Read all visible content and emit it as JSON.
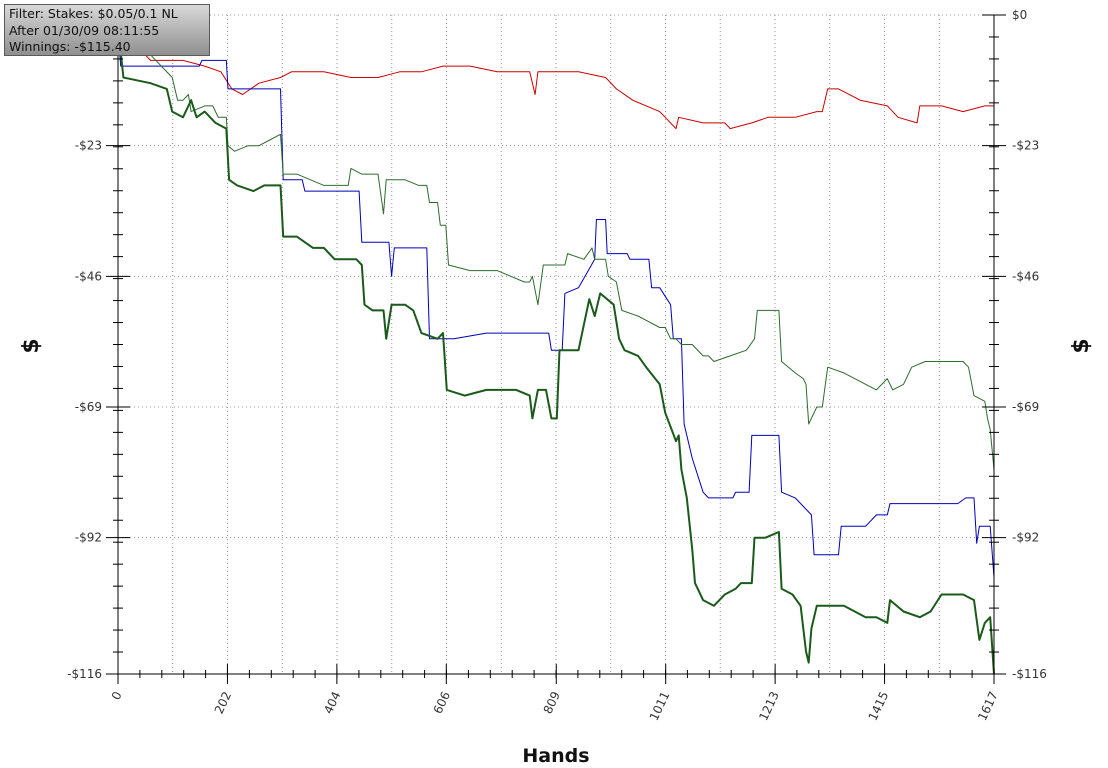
{
  "filter": {
    "line1": "Filter: Stakes: $0.05/0.1 NL",
    "line2": "After 01/30/09 08:11:55",
    "line3": "Winnings: -$115.40"
  },
  "chart_data": {
    "type": "line",
    "xlabel": "Hands",
    "ylabel": "$",
    "xlim": [
      0,
      1617
    ],
    "ylim": [
      -116,
      0
    ],
    "x_ticks": [
      "0",
      "202",
      "404",
      "606",
      "809",
      "1011",
      "1213",
      "1415",
      "1617"
    ],
    "x_tick_values": [
      0,
      202,
      404,
      606,
      809,
      1011,
      1213,
      1415,
      1617
    ],
    "y_ticks": [
      "$0",
      "-$23",
      "-$46",
      "-$69",
      "-$92",
      "-$116"
    ],
    "y_tick_values": [
      0,
      -23,
      -46,
      -69,
      -92,
      -116
    ],
    "grid": true,
    "series": [
      {
        "color": "#cc0000",
        "width": 1,
        "points": [
          [
            0,
            -2
          ],
          [
            60,
            -8
          ],
          [
            120,
            -8
          ],
          [
            160,
            -9
          ],
          [
            190,
            -10
          ],
          [
            210,
            -13
          ],
          [
            230,
            -14
          ],
          [
            260,
            -12
          ],
          [
            300,
            -11
          ],
          [
            320,
            -10
          ],
          [
            380,
            -10
          ],
          [
            430,
            -11
          ],
          [
            480,
            -11
          ],
          [
            520,
            -10
          ],
          [
            560,
            -10
          ],
          [
            600,
            -9
          ],
          [
            650,
            -9
          ],
          [
            700,
            -10
          ],
          [
            760,
            -10
          ],
          [
            770,
            -14
          ],
          [
            775,
            -10
          ],
          [
            800,
            -10
          ],
          [
            850,
            -10
          ],
          [
            900,
            -11
          ],
          [
            920,
            -13
          ],
          [
            950,
            -15
          ],
          [
            1000,
            -17
          ],
          [
            1010,
            -18
          ],
          [
            1030,
            -20
          ],
          [
            1035,
            -18
          ],
          [
            1080,
            -19
          ],
          [
            1120,
            -19
          ],
          [
            1130,
            -20
          ],
          [
            1170,
            -19
          ],
          [
            1200,
            -18
          ],
          [
            1250,
            -18
          ],
          [
            1290,
            -17
          ],
          [
            1300,
            -17
          ],
          [
            1310,
            -13
          ],
          [
            1330,
            -13
          ],
          [
            1370,
            -15
          ],
          [
            1420,
            -16
          ],
          [
            1440,
            -18
          ],
          [
            1475,
            -19
          ],
          [
            1480,
            -16
          ],
          [
            1520,
            -16
          ],
          [
            1560,
            -17
          ],
          [
            1600,
            -16
          ],
          [
            1617,
            -16
          ]
        ]
      },
      {
        "color": "#0000bb",
        "width": 1,
        "points": [
          [
            0,
            -3
          ],
          [
            5,
            -9
          ],
          [
            100,
            -9
          ],
          [
            150,
            -9
          ],
          [
            155,
            -8
          ],
          [
            200,
            -8
          ],
          [
            203,
            -13
          ],
          [
            300,
            -13
          ],
          [
            305,
            -29
          ],
          [
            340,
            -29
          ],
          [
            345,
            -31
          ],
          [
            400,
            -31
          ],
          [
            445,
            -31
          ],
          [
            450,
            -40
          ],
          [
            500,
            -40
          ],
          [
            505,
            -46
          ],
          [
            510,
            -41
          ],
          [
            570,
            -41
          ],
          [
            575,
            -57
          ],
          [
            620,
            -57
          ],
          [
            680,
            -56
          ],
          [
            795,
            -56
          ],
          [
            800,
            -59
          ],
          [
            820,
            -59
          ],
          [
            825,
            -49
          ],
          [
            850,
            -48
          ],
          [
            880,
            -43
          ],
          [
            883,
            -36
          ],
          [
            900,
            -36
          ],
          [
            903,
            -42
          ],
          [
            940,
            -42
          ],
          [
            945,
            -43
          ],
          [
            980,
            -43
          ],
          [
            985,
            -48
          ],
          [
            1000,
            -48
          ],
          [
            1020,
            -51
          ],
          [
            1025,
            -57
          ],
          [
            1040,
            -57
          ],
          [
            1045,
            -72
          ],
          [
            1060,
            -78
          ],
          [
            1080,
            -84
          ],
          [
            1090,
            -85
          ],
          [
            1135,
            -85
          ],
          [
            1140,
            -84
          ],
          [
            1165,
            -84
          ],
          [
            1170,
            -74
          ],
          [
            1220,
            -74
          ],
          [
            1225,
            -84
          ],
          [
            1250,
            -85
          ],
          [
            1280,
            -88
          ],
          [
            1285,
            -95
          ],
          [
            1330,
            -95
          ],
          [
            1335,
            -90
          ],
          [
            1380,
            -90
          ],
          [
            1400,
            -88
          ],
          [
            1420,
            -88
          ],
          [
            1425,
            -86
          ],
          [
            1480,
            -86
          ],
          [
            1550,
            -86
          ],
          [
            1565,
            -85
          ],
          [
            1580,
            -85
          ],
          [
            1585,
            -93
          ],
          [
            1590,
            -90
          ],
          [
            1610,
            -90
          ],
          [
            1617,
            -99
          ]
        ]
      },
      {
        "color": "#2e6b2e",
        "width": 1,
        "points": [
          [
            0,
            -2
          ],
          [
            12,
            -7
          ],
          [
            60,
            -7
          ],
          [
            100,
            -11
          ],
          [
            110,
            -15
          ],
          [
            120,
            -15
          ],
          [
            130,
            -14
          ],
          [
            135,
            -17
          ],
          [
            160,
            -16
          ],
          [
            175,
            -16
          ],
          [
            185,
            -18
          ],
          [
            200,
            -18
          ],
          [
            203,
            -23
          ],
          [
            215,
            -24
          ],
          [
            240,
            -23
          ],
          [
            260,
            -23
          ],
          [
            280,
            -22
          ],
          [
            300,
            -21
          ],
          [
            305,
            -28
          ],
          [
            330,
            -28
          ],
          [
            380,
            -30
          ],
          [
            425,
            -30
          ],
          [
            430,
            -27
          ],
          [
            450,
            -28
          ],
          [
            470,
            -28
          ],
          [
            480,
            -28
          ],
          [
            490,
            -35
          ],
          [
            495,
            -29
          ],
          [
            530,
            -29
          ],
          [
            555,
            -30
          ],
          [
            570,
            -30
          ],
          [
            575,
            -33
          ],
          [
            590,
            -33
          ],
          [
            595,
            -37
          ],
          [
            605,
            -37
          ],
          [
            610,
            -44
          ],
          [
            650,
            -45
          ],
          [
            700,
            -45
          ],
          [
            750,
            -47
          ],
          [
            760,
            -47
          ],
          [
            765,
            -46
          ],
          [
            775,
            -51
          ],
          [
            785,
            -44
          ],
          [
            810,
            -44
          ],
          [
            825,
            -44
          ],
          [
            830,
            -42
          ],
          [
            860,
            -43
          ],
          [
            875,
            -41
          ],
          [
            880,
            -43
          ],
          [
            900,
            -43
          ],
          [
            905,
            -46
          ],
          [
            920,
            -47
          ],
          [
            930,
            -52
          ],
          [
            960,
            -53
          ],
          [
            1000,
            -55
          ],
          [
            1010,
            -55
          ],
          [
            1020,
            -57
          ],
          [
            1030,
            -57
          ],
          [
            1040,
            -58
          ],
          [
            1060,
            -58
          ],
          [
            1080,
            -60
          ],
          [
            1090,
            -60
          ],
          [
            1100,
            -61
          ],
          [
            1130,
            -60
          ],
          [
            1160,
            -59
          ],
          [
            1175,
            -57
          ],
          [
            1180,
            -52
          ],
          [
            1200,
            -52
          ],
          [
            1220,
            -52
          ],
          [
            1225,
            -61
          ],
          [
            1250,
            -63
          ],
          [
            1265,
            -64
          ],
          [
            1270,
            -65
          ],
          [
            1275,
            -72
          ],
          [
            1290,
            -69
          ],
          [
            1300,
            -69
          ],
          [
            1310,
            -62
          ],
          [
            1340,
            -63
          ],
          [
            1380,
            -65
          ],
          [
            1400,
            -66
          ],
          [
            1420,
            -64
          ],
          [
            1430,
            -66
          ],
          [
            1450,
            -65
          ],
          [
            1465,
            -62
          ],
          [
            1490,
            -61
          ],
          [
            1520,
            -61
          ],
          [
            1560,
            -61
          ],
          [
            1570,
            -62
          ],
          [
            1580,
            -67
          ],
          [
            1600,
            -68
          ],
          [
            1605,
            -71
          ],
          [
            1610,
            -73
          ],
          [
            1617,
            -80
          ]
        ]
      },
      {
        "color": "#1a5a1a",
        "width": 2,
        "points": [
          [
            0,
            -2
          ],
          [
            10,
            -11
          ],
          [
            60,
            -12
          ],
          [
            90,
            -13
          ],
          [
            100,
            -17
          ],
          [
            120,
            -18
          ],
          [
            135,
            -15
          ],
          [
            145,
            -18
          ],
          [
            160,
            -17
          ],
          [
            180,
            -19
          ],
          [
            200,
            -20
          ],
          [
            205,
            -29
          ],
          [
            220,
            -30
          ],
          [
            250,
            -31
          ],
          [
            270,
            -30
          ],
          [
            300,
            -30
          ],
          [
            305,
            -39
          ],
          [
            330,
            -39
          ],
          [
            360,
            -41
          ],
          [
            380,
            -41
          ],
          [
            400,
            -43
          ],
          [
            440,
            -43
          ],
          [
            450,
            -44
          ],
          [
            455,
            -51
          ],
          [
            470,
            -52
          ],
          [
            490,
            -52
          ],
          [
            495,
            -57
          ],
          [
            505,
            -51
          ],
          [
            530,
            -51
          ],
          [
            545,
            -52
          ],
          [
            560,
            -56
          ],
          [
            590,
            -57
          ],
          [
            600,
            -56
          ],
          [
            607,
            -66
          ],
          [
            640,
            -67
          ],
          [
            680,
            -66
          ],
          [
            735,
            -66
          ],
          [
            760,
            -67
          ],
          [
            765,
            -71
          ],
          [
            775,
            -66
          ],
          [
            790,
            -66
          ],
          [
            800,
            -71
          ],
          [
            810,
            -71
          ],
          [
            815,
            -59
          ],
          [
            830,
            -59
          ],
          [
            850,
            -59
          ],
          [
            870,
            -50
          ],
          [
            880,
            -53
          ],
          [
            890,
            -49
          ],
          [
            915,
            -51
          ],
          [
            925,
            -57
          ],
          [
            935,
            -59
          ],
          [
            960,
            -60
          ],
          [
            975,
            -62
          ],
          [
            1000,
            -65
          ],
          [
            1010,
            -70
          ],
          [
            1030,
            -75
          ],
          [
            1035,
            -74
          ],
          [
            1040,
            -80
          ],
          [
            1050,
            -85
          ],
          [
            1060,
            -94
          ],
          [
            1065,
            -100
          ],
          [
            1080,
            -103
          ],
          [
            1100,
            -104
          ],
          [
            1120,
            -102
          ],
          [
            1140,
            -101
          ],
          [
            1150,
            -100
          ],
          [
            1170,
            -100
          ],
          [
            1175,
            -92
          ],
          [
            1195,
            -92
          ],
          [
            1220,
            -91
          ],
          [
            1225,
            -101
          ],
          [
            1245,
            -102
          ],
          [
            1260,
            -104
          ],
          [
            1270,
            -112
          ],
          [
            1275,
            -114
          ],
          [
            1280,
            -108
          ],
          [
            1290,
            -104
          ],
          [
            1310,
            -104
          ],
          [
            1340,
            -104
          ],
          [
            1380,
            -106
          ],
          [
            1400,
            -106
          ],
          [
            1420,
            -107
          ],
          [
            1425,
            -103
          ],
          [
            1450,
            -105
          ],
          [
            1480,
            -106
          ],
          [
            1500,
            -105
          ],
          [
            1520,
            -102
          ],
          [
            1560,
            -102
          ],
          [
            1580,
            -103
          ],
          [
            1590,
            -110
          ],
          [
            1600,
            -107
          ],
          [
            1610,
            -106
          ],
          [
            1617,
            -116
          ]
        ]
      }
    ]
  }
}
